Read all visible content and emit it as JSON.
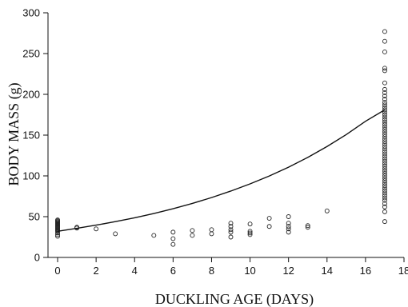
{
  "chart_data": {
    "type": "scatter",
    "title": "",
    "xlabel": "DUCKLING AGE (DAYS)",
    "ylabel": "BODY MASS (g)",
    "xlim": [
      -0.5,
      18
    ],
    "ylim": [
      0,
      300
    ],
    "xticks": [
      0,
      2,
      4,
      6,
      8,
      10,
      12,
      14,
      16,
      18
    ],
    "yticks": [
      0,
      50,
      100,
      150,
      200,
      250,
      300
    ],
    "grid": false,
    "series": [
      {
        "type": "scatter",
        "marker": "open-circle",
        "points": [
          [
            0,
            26
          ],
          [
            0,
            28
          ],
          [
            0,
            30
          ],
          [
            0,
            32
          ],
          [
            0,
            33
          ],
          [
            0,
            34
          ],
          [
            0,
            35
          ],
          [
            0,
            36
          ],
          [
            0,
            37
          ],
          [
            0,
            38
          ],
          [
            0,
            39
          ],
          [
            0,
            40
          ],
          [
            0,
            41
          ],
          [
            0,
            42
          ],
          [
            0,
            43
          ],
          [
            0,
            44
          ],
          [
            0,
            45
          ],
          [
            0,
            46
          ],
          [
            1,
            36
          ],
          [
            1,
            37
          ],
          [
            2,
            35
          ],
          [
            3,
            29
          ],
          [
            5,
            27
          ],
          [
            6,
            16
          ],
          [
            6,
            23
          ],
          [
            6,
            31
          ],
          [
            7,
            27
          ],
          [
            7,
            33
          ],
          [
            8,
            29
          ],
          [
            8,
            34
          ],
          [
            9,
            25
          ],
          [
            9,
            31
          ],
          [
            9,
            34
          ],
          [
            9,
            38
          ],
          [
            9,
            42
          ],
          [
            10,
            28
          ],
          [
            10,
            30
          ],
          [
            10,
            32
          ],
          [
            10,
            41
          ],
          [
            11,
            38
          ],
          [
            11,
            48
          ],
          [
            12,
            31
          ],
          [
            12,
            35
          ],
          [
            12,
            38
          ],
          [
            12,
            42
          ],
          [
            12,
            50
          ],
          [
            13,
            37
          ],
          [
            13,
            39
          ],
          [
            14,
            57
          ],
          [
            17,
            44
          ],
          [
            17,
            56
          ],
          [
            17,
            62
          ],
          [
            17,
            66
          ],
          [
            17,
            70
          ],
          [
            17,
            73
          ],
          [
            17,
            76
          ],
          [
            17,
            79
          ],
          [
            17,
            82
          ],
          [
            17,
            85
          ],
          [
            17,
            88
          ],
          [
            17,
            91
          ],
          [
            17,
            94
          ],
          [
            17,
            97
          ],
          [
            17,
            100
          ],
          [
            17,
            103
          ],
          [
            17,
            106
          ],
          [
            17,
            109
          ],
          [
            17,
            112
          ],
          [
            17,
            115
          ],
          [
            17,
            118
          ],
          [
            17,
            121
          ],
          [
            17,
            124
          ],
          [
            17,
            127
          ],
          [
            17,
            130
          ],
          [
            17,
            133
          ],
          [
            17,
            136
          ],
          [
            17,
            139
          ],
          [
            17,
            142
          ],
          [
            17,
            145
          ],
          [
            17,
            148
          ],
          [
            17,
            151
          ],
          [
            17,
            154
          ],
          [
            17,
            157
          ],
          [
            17,
            160
          ],
          [
            17,
            163
          ],
          [
            17,
            166
          ],
          [
            17,
            169
          ],
          [
            17,
            172
          ],
          [
            17,
            175
          ],
          [
            17,
            178
          ],
          [
            17,
            181
          ],
          [
            17,
            184
          ],
          [
            17,
            187
          ],
          [
            17,
            190
          ],
          [
            17,
            194
          ],
          [
            17,
            198
          ],
          [
            17,
            202
          ],
          [
            17,
            206
          ],
          [
            17,
            214
          ],
          [
            17,
            229
          ],
          [
            17,
            232
          ],
          [
            17,
            252
          ],
          [
            17,
            265
          ],
          [
            17,
            277
          ]
        ]
      },
      {
        "type": "line",
        "points": [
          [
            0,
            32
          ],
          [
            1,
            35.7
          ],
          [
            2,
            39.6
          ],
          [
            3,
            43.9
          ],
          [
            4,
            48.6
          ],
          [
            5,
            53.9
          ],
          [
            6,
            59.7
          ],
          [
            7,
            66.2
          ],
          [
            8,
            73.4
          ],
          [
            9,
            81.4
          ],
          [
            10,
            90.2
          ],
          [
            11,
            99.9
          ],
          [
            12,
            110.7
          ],
          [
            13,
            122.7
          ],
          [
            14,
            136
          ],
          [
            15,
            150.7
          ],
          [
            16,
            167
          ],
          [
            17,
            181
          ]
        ]
      }
    ]
  }
}
